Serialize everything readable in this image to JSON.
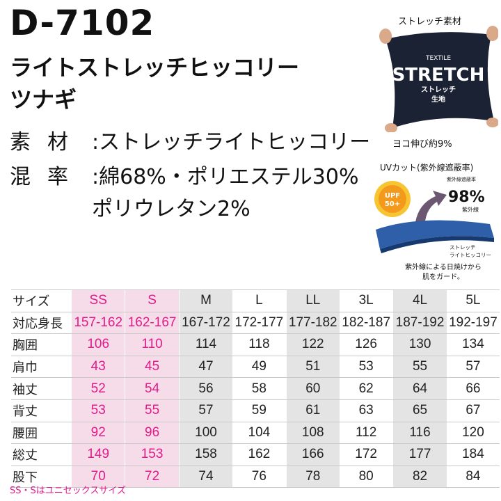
{
  "product": {
    "code": "D-7102",
    "name_line1": "ライトストレッチヒッコリー",
    "name_line2": "ツナギ"
  },
  "specs": {
    "material_label_1": "素",
    "material_label_2": "材",
    "material_value": ":ストレッチライトヒッコリー",
    "mix_label_1": "混",
    "mix_label_2": "率",
    "mix_value": ":綿68%・ポリエステル30%",
    "mix_value_2": "ポリウレタン2%"
  },
  "stretch_panel": {
    "title": "ストレッチ素材",
    "print_line1": "TEXTILE",
    "print_line2": "STRETCH",
    "print_line3": "ストレッチ",
    "print_line4": "生地",
    "caption": "ヨコ伸び約9%"
  },
  "uv_panel": {
    "title": "UVカット(紫外線遮蔽率)",
    "upf_line1": "UPF",
    "upf_line2": "50+",
    "rate_label": "紫外線遮蔽率",
    "rate_value": "98%",
    "ray_label": "紫外線",
    "fabric_label_1": "ストレッチ",
    "fabric_label_2": "ライトヒッコリー",
    "caption_line1": "紫外線による日焼けから",
    "caption_line2": "肌をガード。"
  },
  "size_table": {
    "rows": [
      {
        "label": "サイズ",
        "values": [
          "SS",
          "S",
          "M",
          "L",
          "LL",
          "3L",
          "4L",
          "5L"
        ]
      },
      {
        "label": "対応身長",
        "values": [
          "157-162",
          "162-167",
          "167-172",
          "172-177",
          "177-182",
          "182-187",
          "187-192",
          "192-197"
        ]
      },
      {
        "label": "胸囲",
        "values": [
          "106",
          "110",
          "114",
          "118",
          "122",
          "126",
          "130",
          "134"
        ]
      },
      {
        "label": "肩巾",
        "values": [
          "43",
          "45",
          "47",
          "49",
          "51",
          "53",
          "55",
          "57"
        ]
      },
      {
        "label": "袖丈",
        "values": [
          "52",
          "54",
          "56",
          "58",
          "60",
          "62",
          "64",
          "66"
        ]
      },
      {
        "label": "背丈",
        "values": [
          "53",
          "55",
          "57",
          "59",
          "61",
          "63",
          "65",
          "67"
        ]
      },
      {
        "label": "腰囲",
        "values": [
          "92",
          "96",
          "100",
          "104",
          "108",
          "112",
          "116",
          "120"
        ]
      },
      {
        "label": "総丈",
        "values": [
          "149",
          "153",
          "158",
          "162",
          "166",
          "172",
          "177",
          "184"
        ]
      },
      {
        "label": "股下",
        "values": [
          "70",
          "72",
          "74",
          "76",
          "78",
          "80",
          "82",
          "84"
        ]
      }
    ],
    "column_styles": [
      "pink",
      "pink",
      "gray",
      "white",
      "gray",
      "white",
      "gray",
      "white"
    ]
  },
  "note": "SS・Sはユニセックスサイズ",
  "colors": {
    "accent_pink": "#e01b8a",
    "pink_bg": "#f6dce9",
    "gray_bg": "#e4e4e4",
    "fabric_navy": "#1b2233",
    "denim_blue": "#2f5fa8",
    "upf_orange": "#f39a1c"
  }
}
